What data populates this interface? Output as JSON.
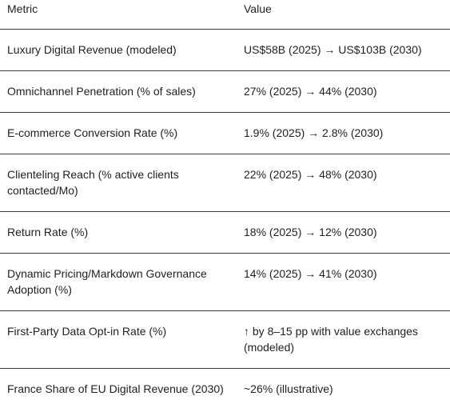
{
  "table": {
    "headers": {
      "metric": "Metric",
      "value": "Value"
    },
    "rows": [
      {
        "metric": "Luxury Digital Revenue (modeled)",
        "value": "US$58B (2025) → US$103B (2030)"
      },
      {
        "metric": "Omnichannel Penetration (% of sales)",
        "value": "27% (2025) → 44% (2030)"
      },
      {
        "metric": "E-commerce Conversion Rate (%)",
        "value": "1.9% (2025) → 2.8% (2030)"
      },
      {
        "metric": "Clienteling Reach (% active clients contacted/Mo)",
        "value": "22% (2025) → 48% (2030)"
      },
      {
        "metric": "Return Rate (%)",
        "value": "18% (2025) → 12% (2030)"
      },
      {
        "metric": "Dynamic Pricing/Markdown Governance Adoption (%)",
        "value": "14% (2025) → 41% (2030)"
      },
      {
        "metric": "First-Party Data Opt-in Rate (%)",
        "value": "↑ by 8–15 pp with value exchanges (modeled)"
      },
      {
        "metric": "France Share of EU Digital Revenue (2030)",
        "value": "~26% (illustrative)"
      }
    ]
  }
}
